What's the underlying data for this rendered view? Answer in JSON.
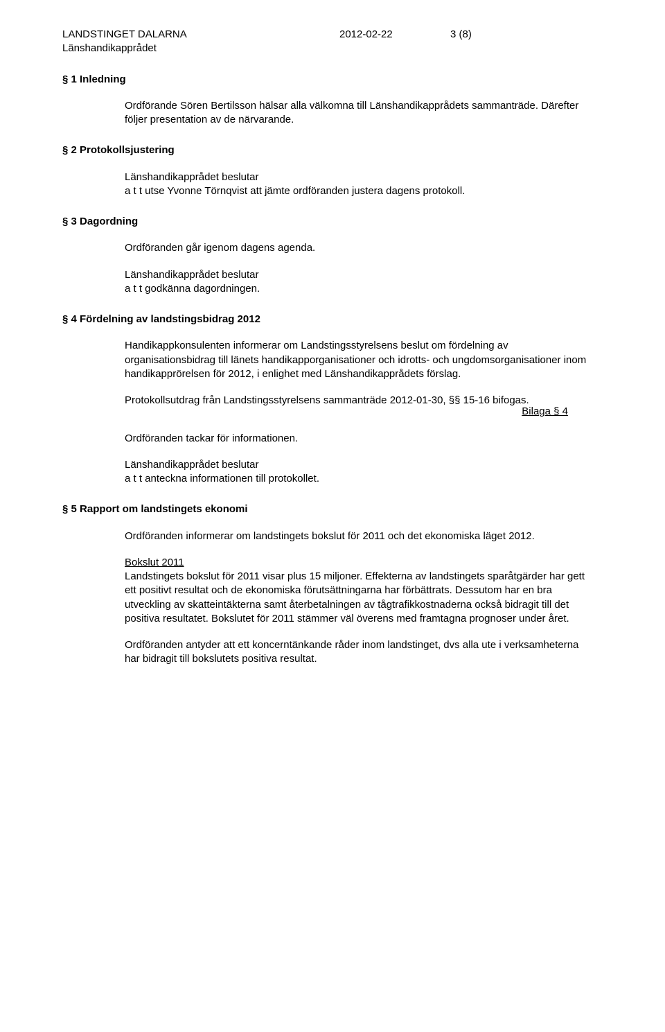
{
  "header": {
    "org": "LANDSTINGET DALARNA",
    "date": "2012-02-22",
    "page": "3 (8)",
    "sub": "Länshandikapprådet"
  },
  "s1": {
    "heading": "§ 1  Inledning",
    "p1": "Ordförande Sören Bertilsson hälsar alla välkomna till Länshandikapprådets sammanträde. Därefter följer presentation av de närvarande."
  },
  "s2": {
    "heading": "§ 2  Protokollsjustering",
    "p1": "Länshandikapprådet beslutar",
    "p2": "a t t  utse Yvonne Törnqvist att jämte ordföranden justera dagens protokoll."
  },
  "s3": {
    "heading": "§ 3  Dagordning",
    "p1": "Ordföranden går igenom dagens agenda.",
    "p2": "Länshandikapprådet beslutar",
    "p3": "a t t  godkänna dagordningen."
  },
  "s4": {
    "heading": "§ 4  Fördelning av landstingsbidrag 2012",
    "p1": "Handikappkonsulenten informerar om Landstingsstyrelsens beslut om fördelning av organisationsbidrag till länets handikapporganisationer och idrotts- och ungdomsorganisationer inom handikapprörelsen för 2012, i enlighet med Länshandikapprådets förslag.",
    "p2": "Protokollsutdrag från Landstingsstyrelsens sammanträde 2012-01-30, §§ 15-16 bifogas.",
    "bilaga": "Bilaga § 4",
    "p3": "Ordföranden tackar för informationen.",
    "p4": "Länshandikapprådet beslutar",
    "p5": "a t t  anteckna informationen till protokollet."
  },
  "s5": {
    "heading": "§ 5  Rapport om landstingets ekonomi",
    "p1": "Ordföranden informerar om landstingets bokslut för 2011 och det ekonomiska läget 2012.",
    "subhead": "Bokslut 2011",
    "p2": "Landstingets bokslut för 2011 visar plus 15 miljoner. Effekterna av landstingets sparåtgärder har gett ett positivt resultat och de ekonomiska förutsättningarna har förbättrats. Dessutom har en bra utveckling av skatteintäkterna samt återbetalningen av tågtrafikkostnaderna också bidragit till det positiva resultatet. Bokslutet för 2011 stämmer väl överens med framtagna prognoser under året.",
    "p3": "Ordföranden antyder att ett koncerntänkande råder inom landstinget, dvs alla ute i verksamheterna har bidragit till bokslutets positiva resultat."
  }
}
